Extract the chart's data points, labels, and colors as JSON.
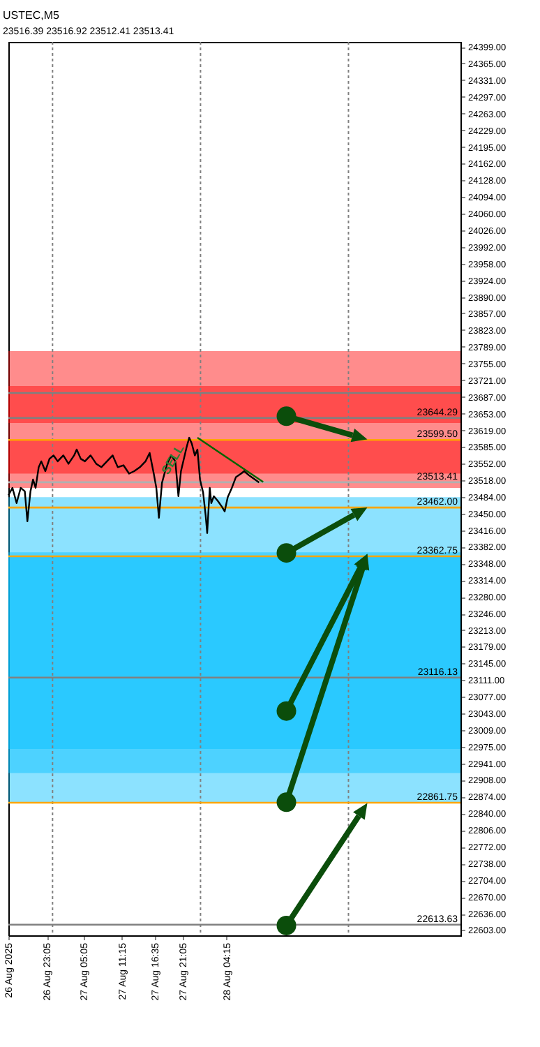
{
  "chart_data": {
    "type": "line",
    "title": "USTEC,M5",
    "subtitle": "23516.39 23516.92 23512.41 23513.41",
    "x": [
      "2025-08-26T16:50",
      "2025-08-26T17:30",
      "2025-08-26T18:10",
      "2025-08-26T18:50",
      "2025-08-26T19:30",
      "2025-08-26T19:55",
      "2025-08-26T20:25",
      "2025-08-26T20:50",
      "2025-08-26T21:15",
      "2025-08-26T21:45",
      "2025-08-26T22:10",
      "2025-08-26T22:50",
      "2025-08-26T23:30",
      "2025-08-27T00:10",
      "2025-08-27T00:50",
      "2025-08-27T01:45",
      "2025-08-27T02:35",
      "2025-08-27T03:30",
      "2025-08-27T03:55",
      "2025-08-27T04:35",
      "2025-08-27T05:15",
      "2025-08-27T06:10",
      "2025-08-27T07:05",
      "2025-08-27T07:55",
      "2025-08-27T08:50",
      "2025-08-27T09:45",
      "2025-08-27T10:35",
      "2025-08-27T11:30",
      "2025-08-27T12:25",
      "2025-08-27T13:15",
      "2025-08-27T14:10",
      "2025-08-27T15:05",
      "2025-08-27T15:45",
      "2025-08-27T16:25",
      "2025-08-27T16:50",
      "2025-08-27T17:15",
      "2025-08-27T17:45",
      "2025-08-27T18:35",
      "2025-08-27T19:15",
      "2025-08-27T19:55",
      "2025-08-27T20:25",
      "2025-08-27T20:50",
      "2025-08-27T21:45",
      "2025-08-27T22:10",
      "2025-08-27T22:35",
      "2025-08-27T23:05",
      "2025-08-27T23:30",
      "2025-08-27T23:55",
      "2025-08-28T00:25",
      "2025-08-28T00:50",
      "2025-08-28T01:05",
      "2025-08-28T01:30",
      "2025-08-28T01:45",
      "2025-08-28T02:10",
      "2025-08-28T02:50",
      "2025-08-28T03:30",
      "2025-08-28T03:55",
      "2025-08-28T04:25",
      "2025-08-28T05:05",
      "2025-08-28T05:45",
      "2025-08-28T06:35",
      "2025-08-28T07:05",
      "2025-08-28T07:55",
      "2025-08-28T08:50",
      "2025-08-28T09:30"
    ],
    "series": [
      {
        "color": "#000000",
        "values": [
          23487,
          23502,
          23471,
          23502,
          23495,
          23434,
          23495,
          23519,
          23502,
          23544,
          23556,
          23536,
          23561,
          23568,
          23556,
          23568,
          23551,
          23568,
          23580,
          23561,
          23556,
          23568,
          23551,
          23544,
          23556,
          23568,
          23544,
          23548,
          23531,
          23536,
          23544,
          23556,
          23573,
          23531,
          23502,
          23441,
          23512,
          23551,
          23568,
          23556,
          23485,
          23536,
          23585,
          23604,
          23592,
          23568,
          23580,
          23519,
          23493,
          23446,
          23410,
          23502,
          23471,
          23485,
          23475,
          23463,
          23454,
          23483,
          23502,
          23524,
          23531,
          23536,
          23527,
          23519,
          23513
        ]
      },
      {
        "type": "line",
        "color": "#006400",
        "x": [
          "2025-08-27T23:30",
          "2025-08-28T10:10"
        ],
        "values": [
          23604,
          23514
        ]
      }
    ],
    "xlim": [
      "2025-08-26T16:50",
      "2025-08-29T18:10"
    ],
    "ylim": [
      22592,
      24409
    ],
    "xticks": [
      {
        "value": "2025-08-26T16:50",
        "label": "26 Aug 2025"
      },
      {
        "value": "2025-08-26T23:05",
        "label": "26 Aug 23:05"
      },
      {
        "value": "2025-08-27T05:05",
        "label": "27 Aug 05:05"
      },
      {
        "value": "2025-08-27T11:15",
        "label": "27 Aug 11:15"
      },
      {
        "value": "2025-08-27T16:35",
        "label": "27 Aug 16:35"
      },
      {
        "value": "2025-08-27T21:05",
        "label": "27 Aug 21:05"
      },
      {
        "value": "2025-08-28T04:15",
        "label": "28 Aug 04:15"
      }
    ],
    "yticks": [
      {
        "value": 24399,
        "label": "24399.00"
      },
      {
        "value": 24365,
        "label": "24365.00"
      },
      {
        "value": 24331,
        "label": "24331.00"
      },
      {
        "value": 24297,
        "label": "24297.00"
      },
      {
        "value": 24263,
        "label": "24263.00"
      },
      {
        "value": 24229,
        "label": "24229.00"
      },
      {
        "value": 24195,
        "label": "24195.00"
      },
      {
        "value": 24162,
        "label": "24162.00"
      },
      {
        "value": 24128,
        "label": "24128.00"
      },
      {
        "value": 24094,
        "label": "24094.00"
      },
      {
        "value": 24060,
        "label": "24060.00"
      },
      {
        "value": 24026,
        "label": "24026.00"
      },
      {
        "value": 23992,
        "label": "23992.00"
      },
      {
        "value": 23958,
        "label": "23958.00"
      },
      {
        "value": 23924,
        "label": "23924.00"
      },
      {
        "value": 23890,
        "label": "23890.00"
      },
      {
        "value": 23857,
        "label": "23857.00"
      },
      {
        "value": 23823,
        "label": "23823.00"
      },
      {
        "value": 23789,
        "label": "23789.00"
      },
      {
        "value": 23755,
        "label": "23755.00"
      },
      {
        "value": 23721,
        "label": "23721.00"
      },
      {
        "value": 23687,
        "label": "23687.00"
      },
      {
        "value": 23653,
        "label": "23653.00"
      },
      {
        "value": 23619,
        "label": "23619.00"
      },
      {
        "value": 23585,
        "label": "23585.00"
      },
      {
        "value": 23552,
        "label": "23552.00"
      },
      {
        "value": 23518,
        "label": "23518.00"
      },
      {
        "value": 23484,
        "label": "23484.00"
      },
      {
        "value": 23450,
        "label": "23450.00"
      },
      {
        "value": 23416,
        "label": "23416.00"
      },
      {
        "value": 23382,
        "label": "23382.00"
      },
      {
        "value": 23348,
        "label": "23348.00"
      },
      {
        "value": 23314,
        "label": "23314.00"
      },
      {
        "value": 23280,
        "label": "23280.00"
      },
      {
        "value": 23246,
        "label": "23246.00"
      },
      {
        "value": 23213,
        "label": "23213.00"
      },
      {
        "value": 23179,
        "label": "23179.00"
      },
      {
        "value": 23145,
        "label": "23145.00"
      },
      {
        "value": 23111,
        "label": "23111.00"
      },
      {
        "value": 23077,
        "label": "23077.00"
      },
      {
        "value": 23043,
        "label": "23043.00"
      },
      {
        "value": 23009,
        "label": "23009.00"
      },
      {
        "value": 22975,
        "label": "22975.00"
      },
      {
        "value": 22941,
        "label": "22941.00"
      },
      {
        "value": 22908,
        "label": "22908.00"
      },
      {
        "value": 22874,
        "label": "22874.00"
      },
      {
        "value": 22840,
        "label": "22840.00"
      },
      {
        "value": 22806,
        "label": "22806.00"
      },
      {
        "value": 22772,
        "label": "22772.00"
      },
      {
        "value": 22738,
        "label": "22738.00"
      },
      {
        "value": 22704,
        "label": "22704.00"
      },
      {
        "value": 22670,
        "label": "22670.00"
      },
      {
        "value": 22636,
        "label": "22636.00"
      },
      {
        "value": 22603,
        "label": "22603.00"
      }
    ],
    "bands": [
      {
        "axis": "y",
        "from": 23531,
        "to": 23709,
        "color": "#ff0000"
      },
      {
        "axis": "y",
        "from": 23634,
        "to": 23780,
        "color": "#ff0000"
      },
      {
        "axis": "y",
        "from": 23502,
        "to": 23599.5,
        "color": "#ff0000"
      },
      {
        "axis": "y",
        "from": 22971,
        "to": 23483,
        "color": "#00bfff"
      },
      {
        "axis": "y",
        "from": 22922,
        "to": 23371,
        "color": "#00bfff"
      },
      {
        "axis": "y",
        "from": 22861.75,
        "to": 23362.75,
        "color": "#00bfff"
      }
    ],
    "ref_lines": [
      {
        "axis": "x",
        "value": "2025-08-27",
        "color": "#808080",
        "line_style": "dotted"
      },
      {
        "axis": "x",
        "value": "2025-08-28",
        "color": "#808080",
        "line_style": "dotted"
      },
      {
        "axis": "x",
        "value": "2025-08-29",
        "color": "#808080",
        "line_style": "dotted"
      },
      {
        "axis": "y",
        "value": 23599.5,
        "label": "23599.50",
        "color": "#ffa500",
        "line_style": "solid"
      },
      {
        "axis": "y",
        "value": 23462,
        "label": "23462.00",
        "color": "#ffa500",
        "line_style": "solid"
      },
      {
        "axis": "y",
        "value": 23362.75,
        "label": "23362.75",
        "color": "#ffa500",
        "line_style": "solid"
      },
      {
        "axis": "y",
        "value": 22861.75,
        "label": "22861.75",
        "color": "#ffa500",
        "line_style": "solid"
      },
      {
        "axis": "y",
        "value": 23513.41,
        "label": "23513.41",
        "color": "#b0b0b0",
        "line_style": "solid"
      },
      {
        "axis": "y",
        "value": 23695,
        "color": "#808080",
        "line_style": "solid"
      },
      {
        "axis": "y",
        "value": 23644.29,
        "label": "23644.29",
        "color": "#808080",
        "line_style": "solid"
      },
      {
        "axis": "y",
        "value": 23116.13,
        "label": "23116.13",
        "color": "#808080",
        "line_style": "solid"
      },
      {
        "axis": "y",
        "value": 22613.63,
        "label": "22613.63",
        "color": "#808080",
        "line_style": "solid"
      }
    ],
    "annotations": [
      {
        "text": "SELL",
        "x": "2025-08-27T19:30",
        "y": 23560
      }
    ],
    "grid": false
  }
}
